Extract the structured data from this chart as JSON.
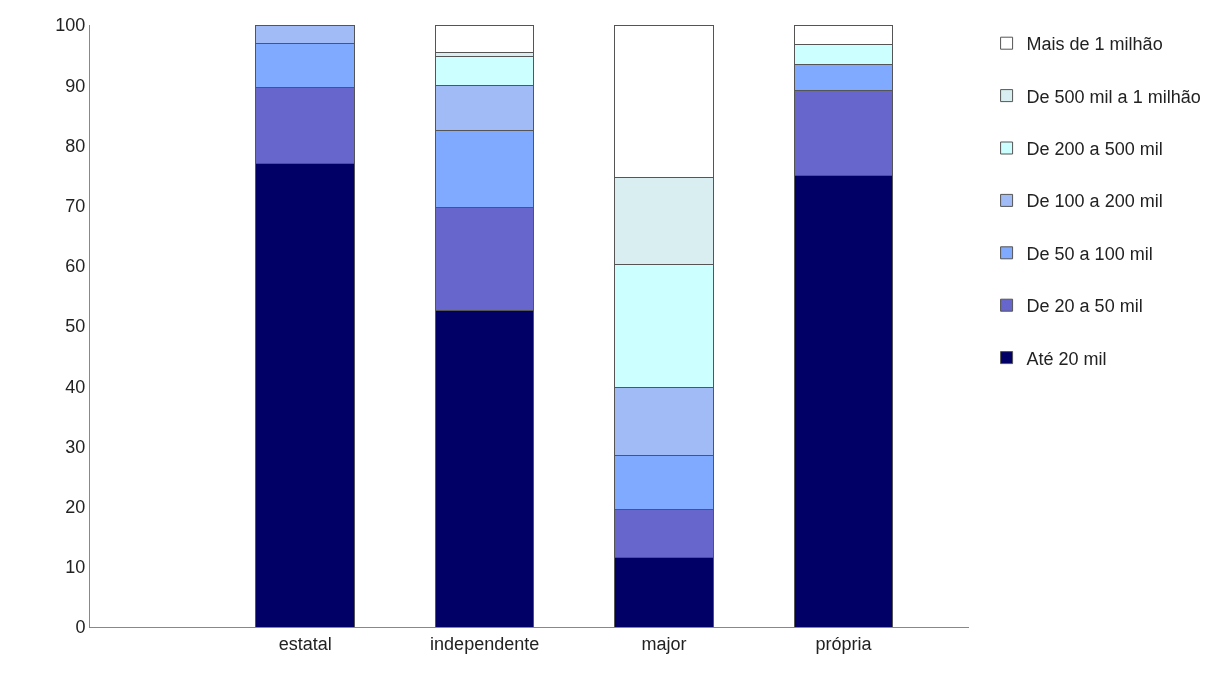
{
  "chart_data": {
    "type": "bar",
    "stacked": true,
    "categories": [
      "estatal",
      "independente",
      "major",
      "própria"
    ],
    "ylim": [
      0,
      100
    ],
    "yticks": [
      0,
      10,
      20,
      30,
      40,
      50,
      60,
      70,
      80,
      90,
      100
    ],
    "legend": "right",
    "series": [
      {
        "name": "Até 20 mil",
        "color": "#000066",
        "values": [
          77,
          52.6,
          11.6,
          75
        ]
      },
      {
        "name": "De 20 a 50 mil",
        "color": "#6666cc",
        "values": [
          12.6,
          17.1,
          8.0,
          14.2
        ]
      },
      {
        "name": "De 50 a 100 mil",
        "color": "#80aaff",
        "values": [
          7.3,
          12.7,
          8.9,
          4.3
        ]
      },
      {
        "name": "De 100 a 200 mil",
        "color": "#a0bbf5",
        "values": [
          3.0,
          7.6,
          11.3,
          0
        ]
      },
      {
        "name": "De 200 a 500 mil",
        "color": "#ccffff",
        "values": [
          0,
          4.7,
          20.4,
          3.3
        ]
      },
      {
        "name": "De 500 mil a 1 milhão",
        "color": "#d9eef0",
        "values": [
          0,
          0.8,
          14.4,
          0
        ]
      },
      {
        "name": "Mais de 1 milhão",
        "color": "#ffffff",
        "values": [
          0,
          4.5,
          25.4,
          3.2
        ]
      }
    ]
  }
}
